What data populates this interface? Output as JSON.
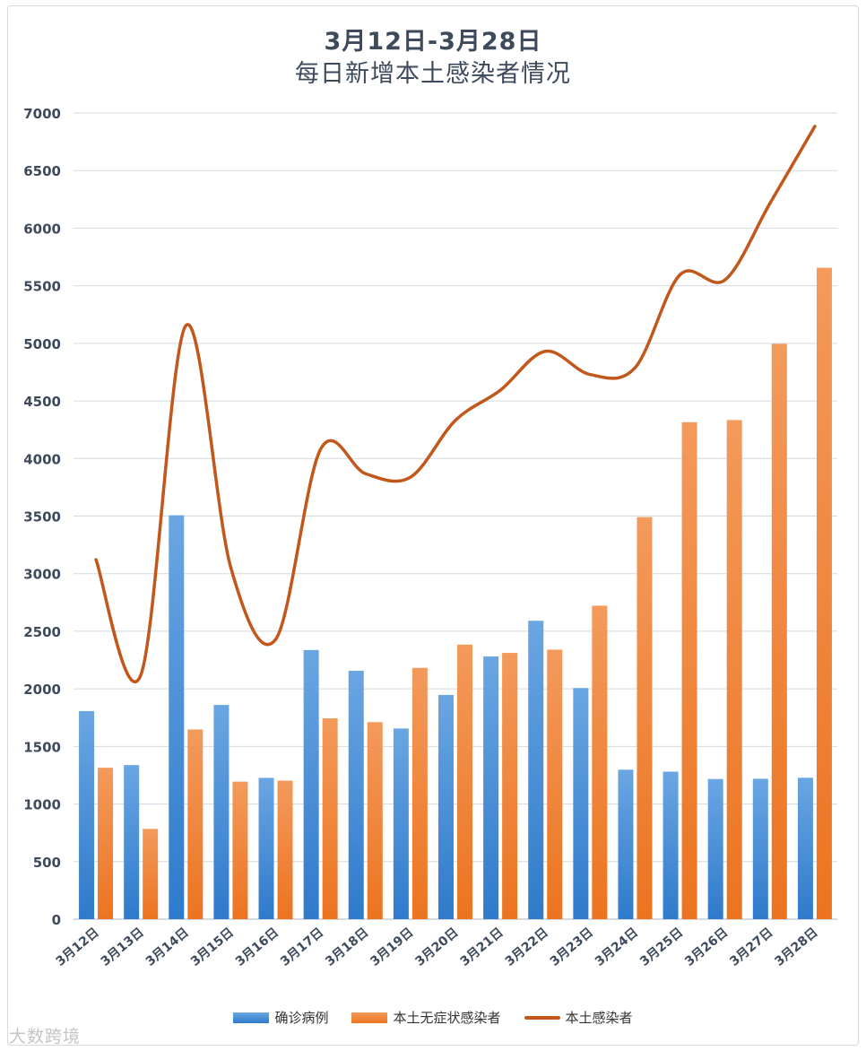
{
  "chart_data": {
    "type": "bar",
    "title": "3月12日-3月28日",
    "subtitle": "每日新增本土感染者情况",
    "categories": [
      "3月12日",
      "3月13日",
      "3月14日",
      "3月15日",
      "3月16日",
      "3月17日",
      "3月18日",
      "3月19日",
      "3月20日",
      "3月21日",
      "3月22日",
      "3月23日",
      "3月24日",
      "3月25日",
      "3月26日",
      "3月27日",
      "3月28日"
    ],
    "series": [
      {
        "name": "确诊病例",
        "kind": "bar",
        "color": "#3f88d3",
        "values": [
          1807,
          1338,
          3507,
          1860,
          1227,
          2337,
          2157,
          1656,
          1947,
          2281,
          2591,
          2007,
          1298,
          1281,
          1217,
          1219,
          1228
        ]
      },
      {
        "name": "本土无症状感染者",
        "kind": "bar",
        "color": "#f0792a",
        "values": [
          1315,
          784,
          1647,
          1194,
          1203,
          1744,
          1711,
          2182,
          2384,
          2312,
          2340,
          2722,
          3491,
          4315,
          4334,
          4996,
          5656
        ]
      },
      {
        "name": "本土感染者",
        "kind": "line",
        "color": "#c2571b",
        "values": [
          3122,
          2122,
          5154,
          3054,
          2430,
          4081,
          3868,
          3838,
          4331,
          4593,
          4931,
          4729,
          4789,
          5596,
          5551,
          6215,
          6884
        ]
      }
    ],
    "ylim": [
      0,
      7000
    ],
    "yticks": [
      0,
      500,
      1000,
      1500,
      2000,
      2500,
      3000,
      3500,
      4000,
      4500,
      5000,
      5500,
      6000,
      6500,
      7000
    ],
    "grid": true,
    "legend_position": "bottom"
  },
  "watermark": "大数跨境",
  "colors": {
    "grid": "#d4d9e2",
    "axis_text": "#3d4a5c"
  }
}
